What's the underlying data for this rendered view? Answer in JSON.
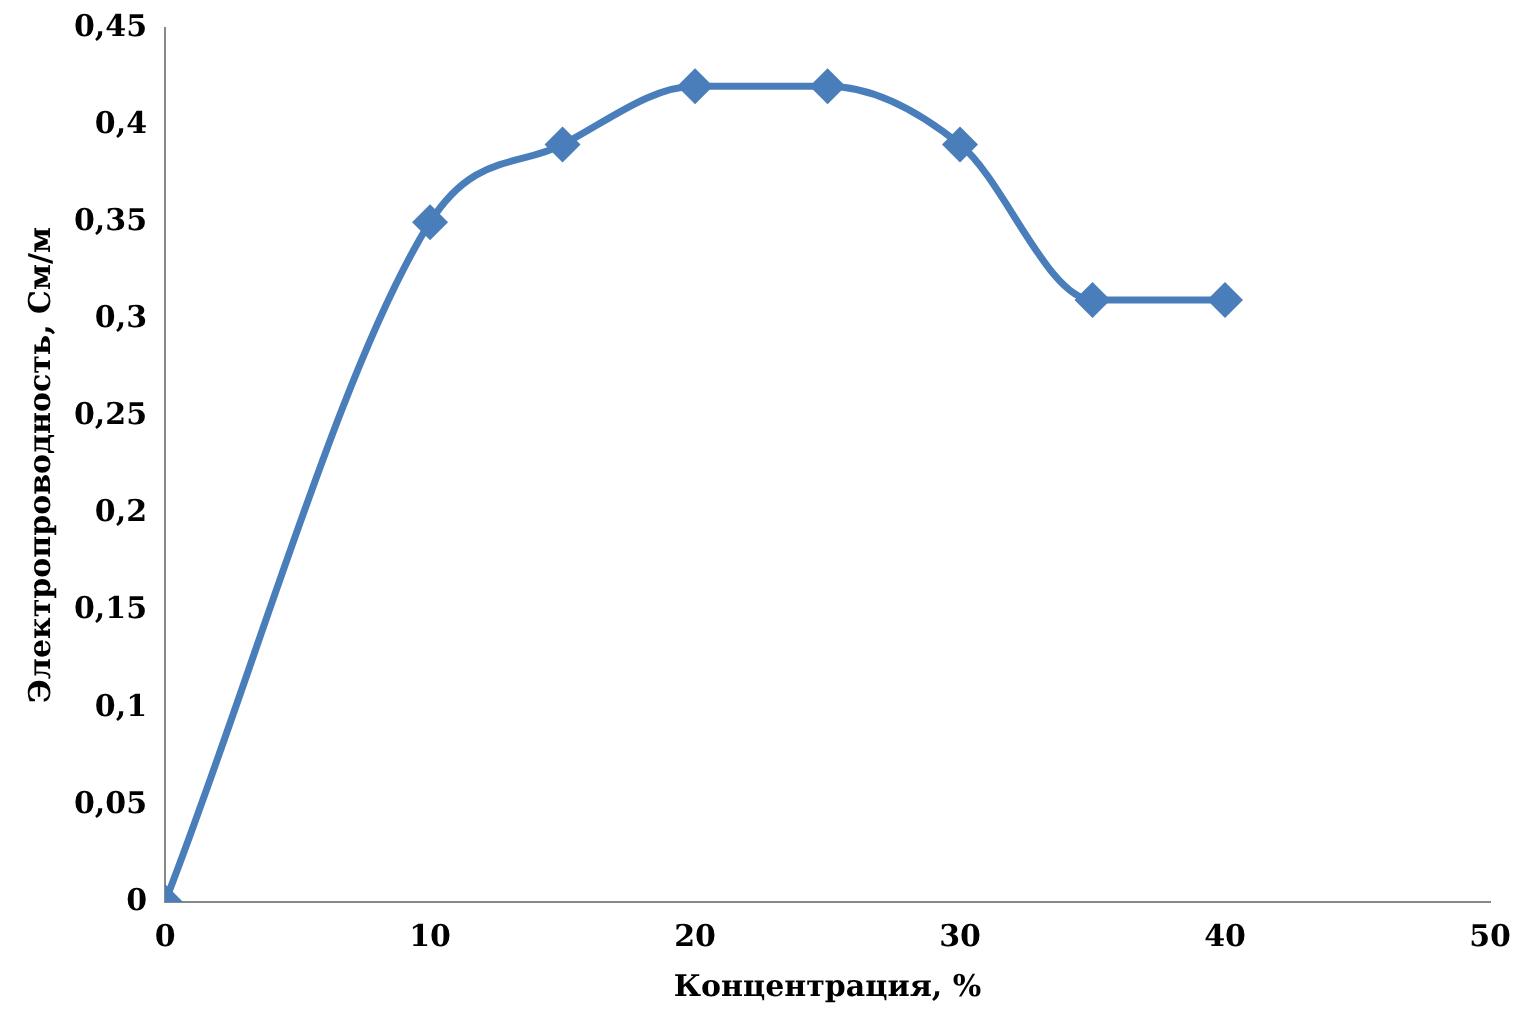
{
  "chart_data": {
    "type": "line",
    "xlabel": "Концентрация, %",
    "ylabel": "Электропроводность, См/м",
    "x": [
      0,
      10,
      15,
      20,
      25,
      30,
      35,
      40
    ],
    "series": [
      {
        "color": "#4a7ebb",
        "values": [
          0,
          0.35,
          0.39,
          0.42,
          0.42,
          0.39,
          0.31,
          0.31
        ]
      }
    ],
    "xlim": [
      0,
      50
    ],
    "xticks": [
      0,
      10,
      20,
      30,
      40,
      50
    ],
    "ylim": [
      0,
      0.45
    ],
    "yticks": [
      0,
      {
        "value": 0.05,
        "label": "0,05"
      },
      {
        "value": 0.1,
        "label": "0,1"
      },
      {
        "value": 0.15,
        "label": "0,15"
      },
      {
        "value": 0.2,
        "label": "0,2"
      },
      {
        "value": 0.25,
        "label": "0,25"
      },
      {
        "value": 0.3,
        "label": "0,3"
      },
      {
        "value": 0.35,
        "label": "0,35"
      },
      {
        "value": 0.4,
        "label": "0,4"
      },
      {
        "value": 0.45,
        "label": "0,45"
      }
    ],
    "grid": false,
    "legend": false,
    "marker": "diamond",
    "line_style": "solid"
  }
}
